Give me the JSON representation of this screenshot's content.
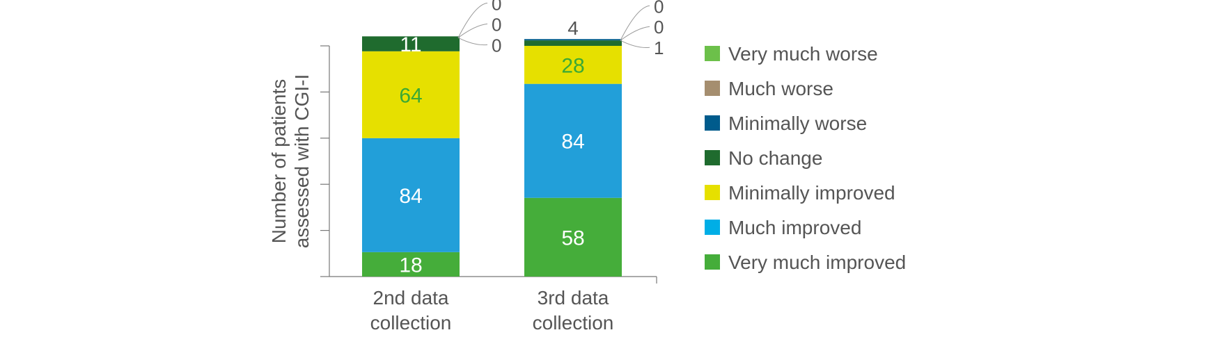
{
  "chart_data": {
    "type": "bar",
    "stacked": true,
    "title": "",
    "xlabel": "",
    "ylabel": "Number of patients assessed with CGI-I",
    "ylabel_lines": [
      "Number of patients",
      "assessed with CGI-I"
    ],
    "ylim": [
      0,
      170
    ],
    "y_tick_values": [
      0,
      34,
      68,
      102,
      136,
      170
    ],
    "y_tick_labels_shown": false,
    "grid": false,
    "legend_position": "right",
    "categories": [
      "2nd data collection",
      "3rd data collection"
    ],
    "category_lines": [
      [
        "2nd data",
        "collection"
      ],
      [
        "3rd data",
        "collection"
      ]
    ],
    "series": [
      {
        "name": "Very much improved",
        "color": "#45ad3a",
        "label_color": "#ffffff",
        "values": [
          18,
          58
        ]
      },
      {
        "name": "Much improved",
        "color": "#229fd9",
        "label_color": "#ffffff",
        "values": [
          84,
          84
        ]
      },
      {
        "name": "Minimally improved",
        "color": "#e6e000",
        "label_color": "#3aa935",
        "values": [
          64,
          28
        ]
      },
      {
        "name": "No change",
        "color": "#1f6b2e",
        "label_color": "#ffffff",
        "values": [
          11,
          4
        ]
      },
      {
        "name": "Minimally worse",
        "color": "#005b8c",
        "label_color": "#555555",
        "values": [
          0,
          1
        ]
      },
      {
        "name": "Much worse",
        "color": "#a58e6f",
        "label_color": "#555555",
        "values": [
          0,
          0
        ]
      },
      {
        "name": "Very much worse",
        "color": "#6cc04a",
        "label_color": "#555555",
        "values": [
          0,
          0
        ]
      }
    ],
    "legend_order": [
      "Very much worse",
      "Much worse",
      "Minimally worse",
      "No change",
      "Minimally improved",
      "Much improved",
      "Very much improved"
    ],
    "legend_swatch_colors": {
      "Much improved": "#00aee6",
      "Very much worse": "#6cc04a"
    }
  }
}
